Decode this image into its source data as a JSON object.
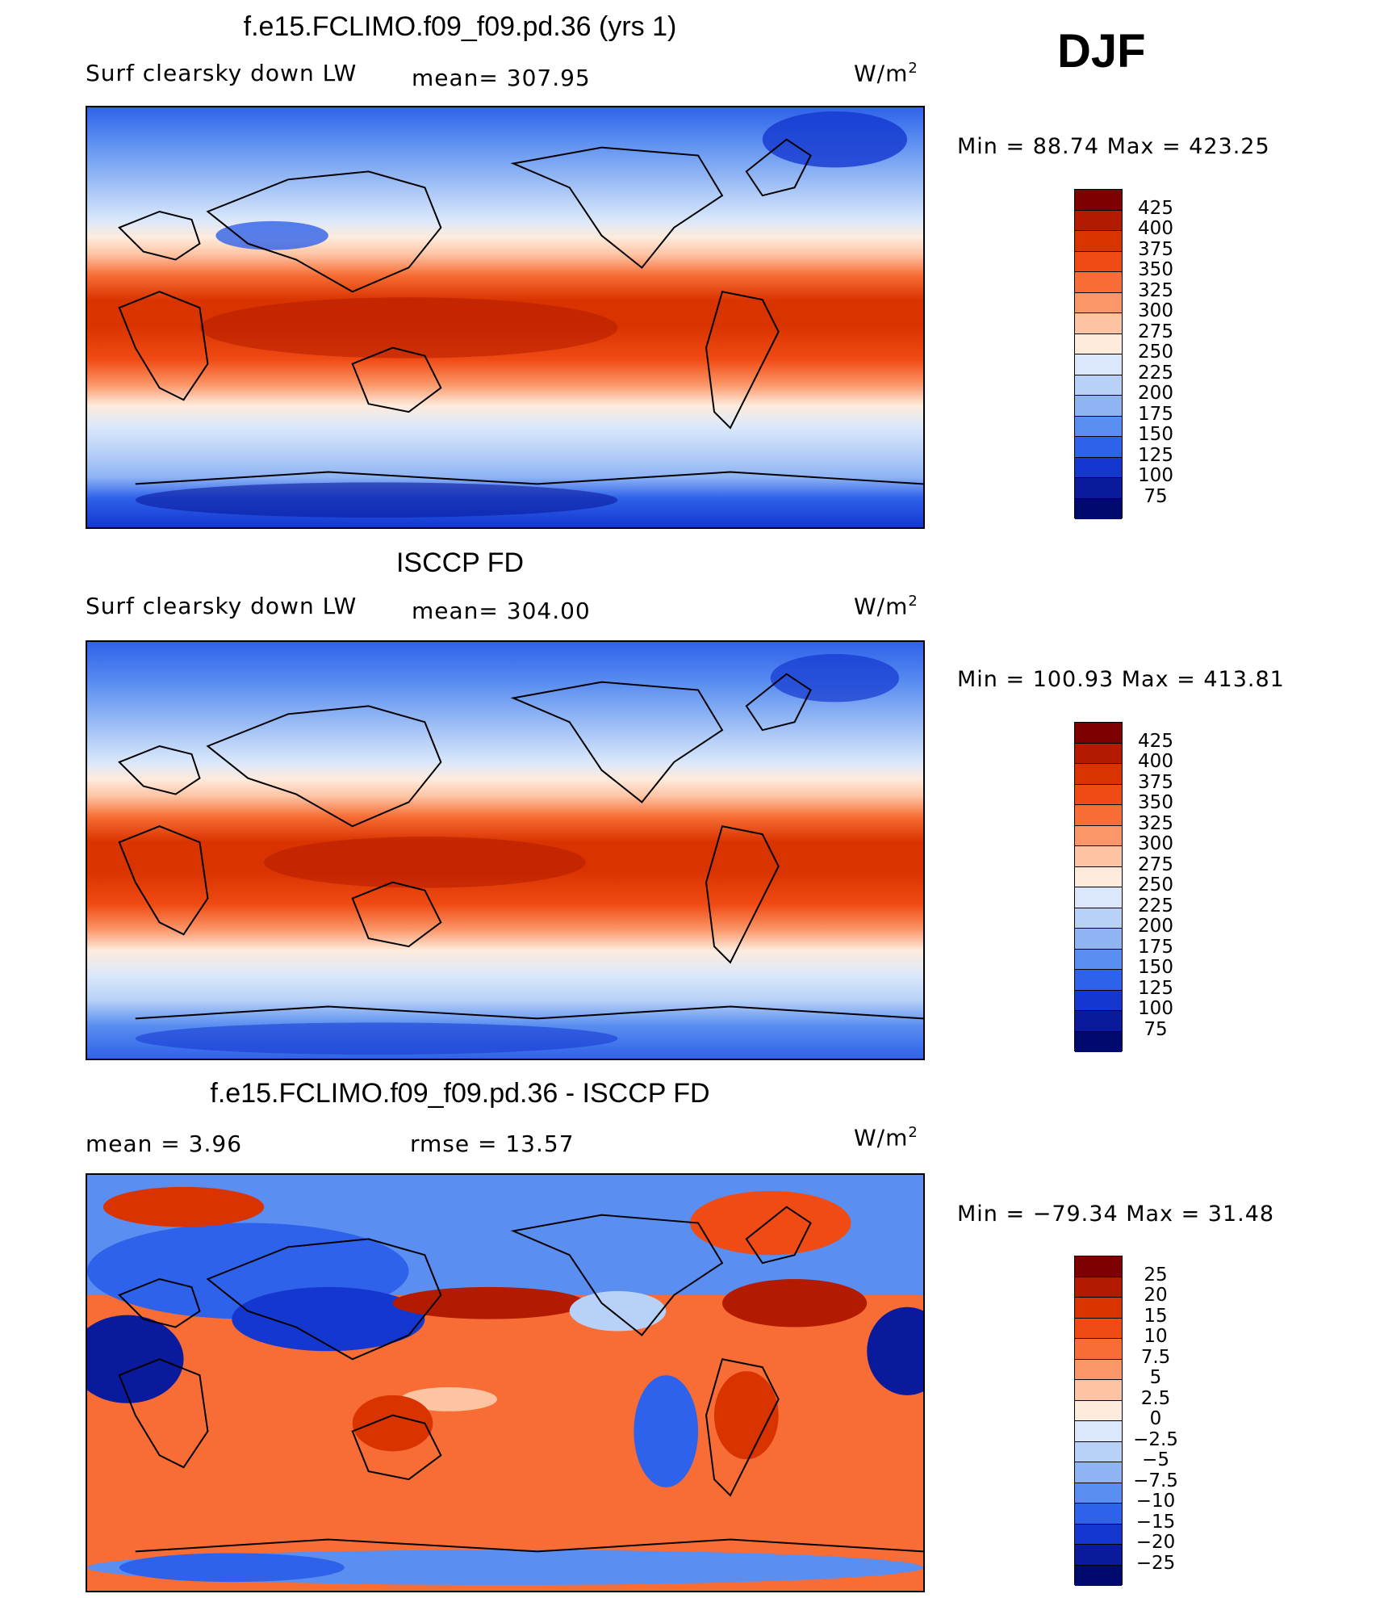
{
  "season": "DJF",
  "unit_base": "W/m",
  "unit_exp": "2",
  "panels": [
    {
      "title": "f.e15.FCLIMO.f09_f09.pd.36 (yrs 1)",
      "left_label": "Surf clearsky down LW",
      "mid_label": "mean= 307.95",
      "min_max": "Min =  88.74 Max = 423.25",
      "levels": [
        "425",
        "400",
        "375",
        "350",
        "325",
        "300",
        "275",
        "250",
        "225",
        "200",
        "175",
        "150",
        "125",
        "100",
        "75"
      ]
    },
    {
      "title": "ISCCP FD",
      "left_label": "Surf clearsky down LW",
      "mid_label": "mean= 304.00",
      "min_max": "Min = 100.93 Max = 413.81",
      "levels": [
        "425",
        "400",
        "375",
        "350",
        "325",
        "300",
        "275",
        "250",
        "225",
        "200",
        "175",
        "150",
        "125",
        "100",
        "75"
      ]
    },
    {
      "title": "f.e15.FCLIMO.f09_f09.pd.36 - ISCCP FD",
      "left_label": "mean =    3.96",
      "mid_label": "rmse =    13.57",
      "min_max": "Min = −79.34 Max =   31.48",
      "levels": [
        "25",
        "20",
        "15",
        "10",
        "7.5",
        "5",
        "2.5",
        "0",
        "−2.5",
        "−5",
        "−7.5",
        "−10",
        "−15",
        "−20",
        "−25"
      ]
    }
  ],
  "palette": [
    "#7f0000",
    "#b31b00",
    "#d93300",
    "#f04b14",
    "#f76d35",
    "#fb9668",
    "#fdc4a4",
    "#feebdc",
    "#dbe8fb",
    "#b8d1f8",
    "#8fb4f4",
    "#5a8ef0",
    "#2f62ea",
    "#1437d0",
    "#0a1a9c",
    "#000a6e"
  ]
}
